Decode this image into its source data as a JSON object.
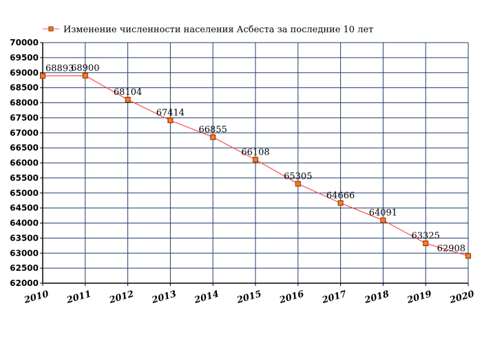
{
  "chart_data": {
    "type": "line",
    "legend": {
      "label": "Изменение численности населения Асбеста за последние 10 лет",
      "position": "top",
      "line_color": "#ff4a4a",
      "marker_color": "#ff7a1a"
    },
    "categories": [
      "2010",
      "2011",
      "2012",
      "2013",
      "2014",
      "2015",
      "2016",
      "2017",
      "2018",
      "2019",
      "2020"
    ],
    "series": [
      {
        "name": "Изменение численности населения Асбеста за последние 10 лет",
        "values": [
          68893,
          68900,
          68104,
          67414,
          66855,
          66108,
          65305,
          64666,
          64091,
          63325,
          62908
        ],
        "labels": [
          "68893",
          "68900",
          "68104",
          "67414",
          "66855",
          "66108",
          "65305",
          "64666",
          "64091",
          "63325",
          "62908"
        ]
      }
    ],
    "ylim": [
      62000,
      70000
    ],
    "ytick_step": 500,
    "grid": true,
    "grid_color": "#1f3a6e"
  }
}
